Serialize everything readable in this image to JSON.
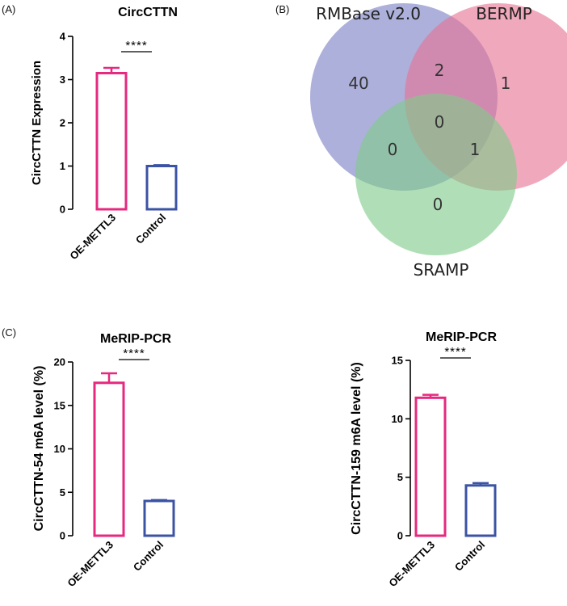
{
  "panels": {
    "a": "(A)",
    "b": "(B)",
    "c": "(C)"
  },
  "chart_data": [
    {
      "type": "bar",
      "title": "CircCTTN",
      "ylabel": "CircCTTN Expression",
      "xlabel": "",
      "categories": [
        "OE-METTL3",
        "Control"
      ],
      "values": [
        3.15,
        1.0
      ],
      "errors": [
        0.12,
        0.02
      ],
      "ylim": [
        0,
        4
      ],
      "yticks": [
        0,
        1,
        2,
        3,
        4
      ],
      "significance": "****",
      "colors": [
        "#e6297f",
        "#3b53a4"
      ]
    },
    {
      "type": "bar",
      "title": "MeRIP-PCR",
      "ylabel": "CircCTTN-54 m6A level (%)",
      "xlabel": "",
      "categories": [
        "OE-METTL3",
        "Control"
      ],
      "values": [
        17.6,
        4.0
      ],
      "errors": [
        1.1,
        0.1
      ],
      "ylim": [
        0,
        20
      ],
      "yticks": [
        0,
        5,
        10,
        15,
        20
      ],
      "significance": "****",
      "colors": [
        "#e6297f",
        "#3b53a4"
      ]
    },
    {
      "type": "bar",
      "title": "MeRIP-PCR",
      "ylabel": "CircCTTN-159 m6A level (%)",
      "xlabel": "",
      "categories": [
        "OE-METTL3",
        "Control"
      ],
      "values": [
        11.8,
        4.3
      ],
      "errors": [
        0.25,
        0.2
      ],
      "ylim": [
        0,
        15
      ],
      "yticks": [
        0,
        5,
        10,
        15
      ],
      "significance": "****",
      "colors": [
        "#e6297f",
        "#3b53a4"
      ]
    }
  ],
  "venn": {
    "sets": [
      {
        "name": "RMBase v2.0",
        "color": "#7b7fc4"
      },
      {
        "name": "BERMP",
        "color": "#e67294"
      },
      {
        "name": "SRAMP",
        "color": "#7fcc8a"
      }
    ],
    "regions": {
      "rmbase_only": "40",
      "bermp_only": "1",
      "sramp_only": "0",
      "rmbase_bermp": "2",
      "rmbase_sramp": "0",
      "bermp_sramp": "1",
      "all_three": "0"
    }
  }
}
